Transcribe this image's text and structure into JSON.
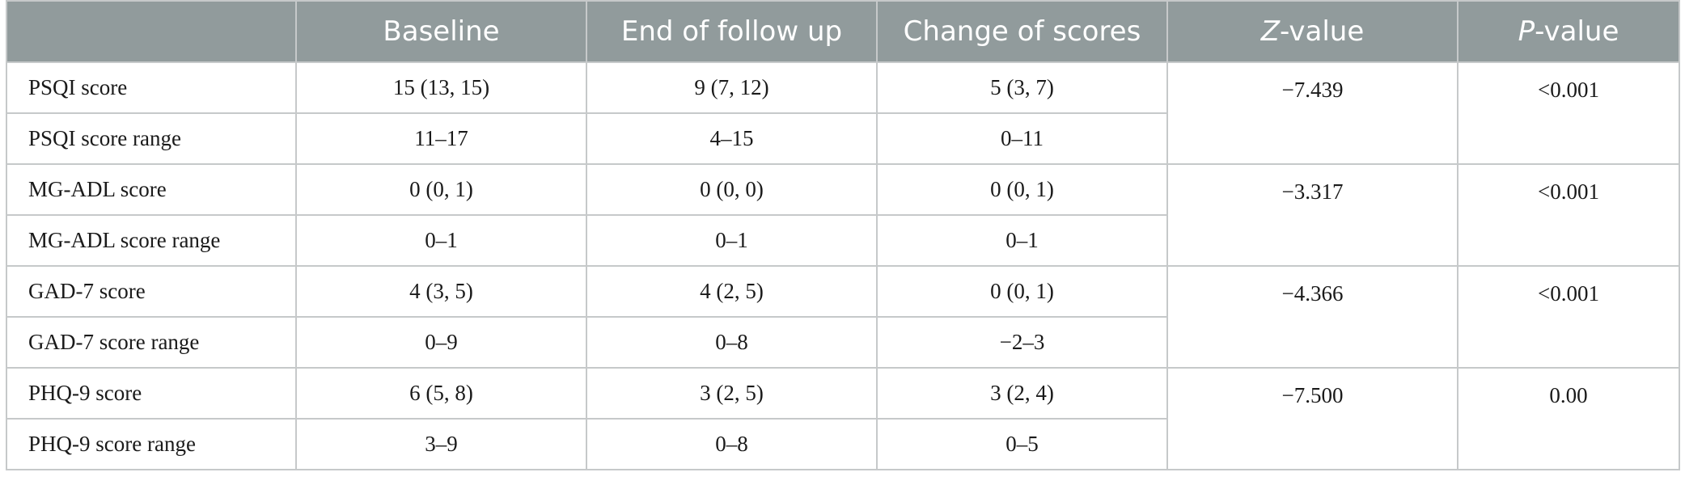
{
  "table": {
    "headers": {
      "c0": "",
      "c1": "Baseline",
      "c2": "End of follow up",
      "c3": "Change of scores",
      "c4_italic": "Z",
      "c4_rest": "-value",
      "c5_italic": "P",
      "c5_rest": "-value"
    },
    "groups": [
      {
        "z": "−7.439",
        "p": "<0.001",
        "rows": [
          {
            "label": "PSQI score",
            "baseline": "15 (13, 15)",
            "end": "9 (7, 12)",
            "change": "5 (3, 7)"
          },
          {
            "label": "PSQI score range",
            "baseline": "11–17",
            "end": "4–15",
            "change": "0–11"
          }
        ]
      },
      {
        "z": "−3.317",
        "p": "<0.001",
        "rows": [
          {
            "label": "MG-ADL score",
            "baseline": "0 (0, 1)",
            "end": "0 (0, 0)",
            "change": "0 (0, 1)"
          },
          {
            "label": "MG-ADL score range",
            "baseline": "0–1",
            "end": "0–1",
            "change": "0–1"
          }
        ]
      },
      {
        "z": "−4.366",
        "p": "<0.001",
        "rows": [
          {
            "label": "GAD-7 score",
            "baseline": "4 (3, 5)",
            "end": "4 (2, 5)",
            "change": "0 (0, 1)"
          },
          {
            "label": "GAD-7 score range",
            "baseline": "0–9",
            "end": "0–8",
            "change": "−2–3"
          }
        ]
      },
      {
        "z": "−7.500",
        "p": "0.00",
        "rows": [
          {
            "label": "PHQ-9 score",
            "baseline": "6 (5, 8)",
            "end": "3 (2, 5)",
            "change": "3 (2, 4)"
          },
          {
            "label": "PHQ-9 score range",
            "baseline": "3–9",
            "end": "0–8",
            "change": "0–5"
          }
        ]
      }
    ]
  }
}
